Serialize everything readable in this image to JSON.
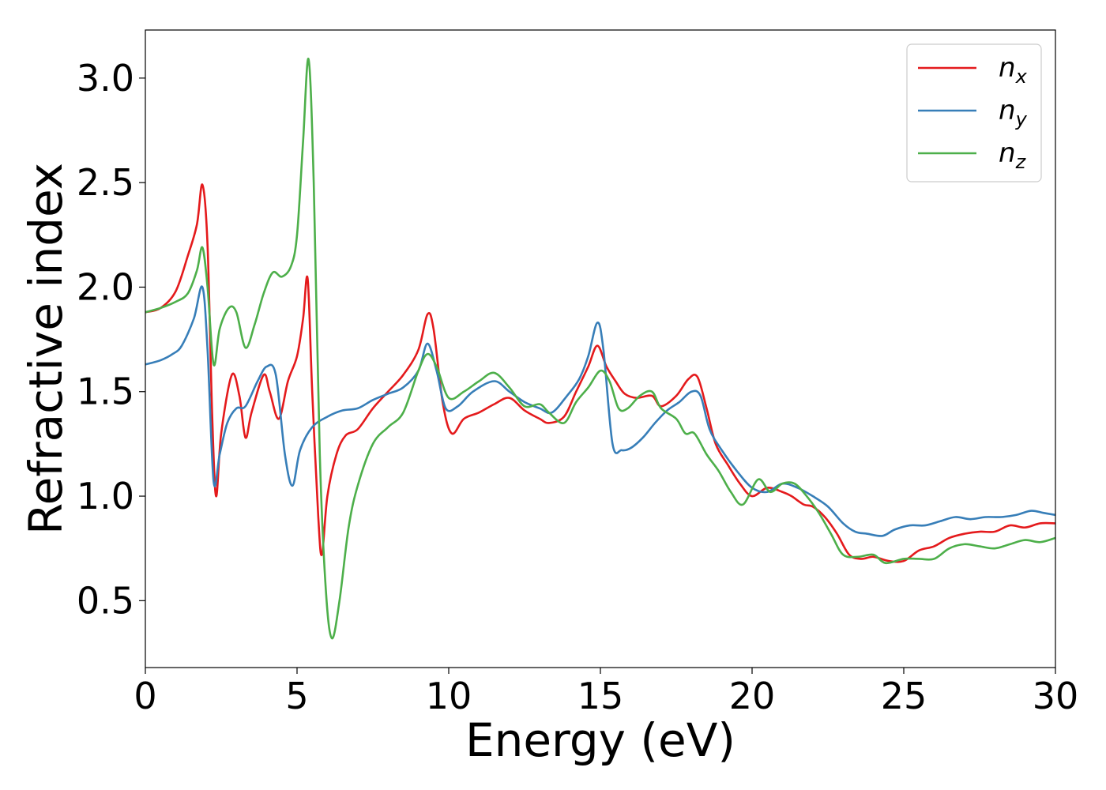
{
  "chart_data": {
    "type": "line",
    "xlabel": "Energy (eV)",
    "ylabel": "Refractive index",
    "xlim": [
      0,
      30
    ],
    "ylim": [
      0.18,
      3.23
    ],
    "xticks": [
      0,
      5,
      10,
      15,
      20,
      25,
      30
    ],
    "xtick_labels": [
      "0",
      "5",
      "10",
      "15",
      "20",
      "25",
      "30"
    ],
    "yticks": [
      0.5,
      1.0,
      1.5,
      2.0,
      2.5,
      3.0
    ],
    "ytick_labels": [
      "0.5",
      "1.0",
      "1.5",
      "2.0",
      "2.5",
      "3.0"
    ],
    "grid": false,
    "legend": "top-right",
    "series": [
      {
        "name": "n_x",
        "label_base": "n",
        "label_sub": "x",
        "color": "#e41a1c",
        "points": [
          [
            0,
            1.88
          ],
          [
            0.5,
            1.9
          ],
          [
            1.0,
            1.98
          ],
          [
            1.4,
            2.15
          ],
          [
            1.7,
            2.3
          ],
          [
            1.88,
            2.49
          ],
          [
            2.05,
            2.2
          ],
          [
            2.2,
            1.4
          ],
          [
            2.33,
            1.0
          ],
          [
            2.5,
            1.3
          ],
          [
            2.85,
            1.58
          ],
          [
            3.1,
            1.48
          ],
          [
            3.3,
            1.28
          ],
          [
            3.5,
            1.4
          ],
          [
            3.9,
            1.58
          ],
          [
            4.1,
            1.5
          ],
          [
            4.4,
            1.37
          ],
          [
            4.7,
            1.55
          ],
          [
            5.0,
            1.67
          ],
          [
            5.2,
            1.85
          ],
          [
            5.35,
            2.04
          ],
          [
            5.5,
            1.5
          ],
          [
            5.7,
            0.9
          ],
          [
            5.82,
            0.72
          ],
          [
            6.0,
            1.0
          ],
          [
            6.3,
            1.2
          ],
          [
            6.6,
            1.29
          ],
          [
            7.0,
            1.32
          ],
          [
            7.5,
            1.42
          ],
          [
            8.0,
            1.5
          ],
          [
            8.5,
            1.58
          ],
          [
            9.0,
            1.7
          ],
          [
            9.3,
            1.87
          ],
          [
            9.5,
            1.8
          ],
          [
            9.8,
            1.45
          ],
          [
            10.1,
            1.3
          ],
          [
            10.5,
            1.37
          ],
          [
            11,
            1.4
          ],
          [
            11.5,
            1.44
          ],
          [
            12,
            1.47
          ],
          [
            12.5,
            1.41
          ],
          [
            13,
            1.37
          ],
          [
            13.3,
            1.35
          ],
          [
            13.8,
            1.38
          ],
          [
            14.2,
            1.5
          ],
          [
            14.6,
            1.62
          ],
          [
            14.9,
            1.72
          ],
          [
            15.2,
            1.62
          ],
          [
            15.5,
            1.55
          ],
          [
            15.8,
            1.49
          ],
          [
            16.2,
            1.47
          ],
          [
            16.7,
            1.48
          ],
          [
            17.0,
            1.43
          ],
          [
            17.5,
            1.48
          ],
          [
            17.9,
            1.56
          ],
          [
            18.2,
            1.57
          ],
          [
            18.5,
            1.42
          ],
          [
            18.8,
            1.25
          ],
          [
            19.2,
            1.15
          ],
          [
            19.6,
            1.06
          ],
          [
            20.0,
            1.0
          ],
          [
            20.5,
            1.04
          ],
          [
            21.0,
            1.02
          ],
          [
            21.3,
            1.0
          ],
          [
            21.7,
            0.96
          ],
          [
            22.0,
            0.95
          ],
          [
            22.4,
            0.9
          ],
          [
            22.8,
            0.82
          ],
          [
            23.2,
            0.72
          ],
          [
            23.6,
            0.7
          ],
          [
            24.0,
            0.71
          ],
          [
            24.5,
            0.69
          ],
          [
            25.0,
            0.69
          ],
          [
            25.5,
            0.74
          ],
          [
            26.0,
            0.76
          ],
          [
            26.5,
            0.8
          ],
          [
            27.0,
            0.82
          ],
          [
            27.5,
            0.83
          ],
          [
            28.0,
            0.83
          ],
          [
            28.5,
            0.86
          ],
          [
            29.0,
            0.85
          ],
          [
            29.5,
            0.87
          ],
          [
            30,
            0.87
          ]
        ]
      },
      {
        "name": "n_y",
        "label_base": "n",
        "label_sub": "y",
        "color": "#377eb8",
        "points": [
          [
            0,
            1.63
          ],
          [
            0.5,
            1.65
          ],
          [
            0.9,
            1.68
          ],
          [
            1.2,
            1.72
          ],
          [
            1.6,
            1.85
          ],
          [
            1.88,
            2.0
          ],
          [
            2.05,
            1.7
          ],
          [
            2.25,
            1.07
          ],
          [
            2.45,
            1.2
          ],
          [
            2.7,
            1.35
          ],
          [
            3.0,
            1.42
          ],
          [
            3.3,
            1.43
          ],
          [
            3.7,
            1.55
          ],
          [
            4.0,
            1.62
          ],
          [
            4.3,
            1.58
          ],
          [
            4.6,
            1.2
          ],
          [
            4.85,
            1.05
          ],
          [
            5.1,
            1.22
          ],
          [
            5.5,
            1.33
          ],
          [
            6.0,
            1.38
          ],
          [
            6.5,
            1.41
          ],
          [
            7.0,
            1.42
          ],
          [
            7.5,
            1.46
          ],
          [
            8.0,
            1.49
          ],
          [
            8.5,
            1.52
          ],
          [
            9.0,
            1.6
          ],
          [
            9.3,
            1.73
          ],
          [
            9.6,
            1.6
          ],
          [
            9.9,
            1.42
          ],
          [
            10.3,
            1.43
          ],
          [
            10.8,
            1.5
          ],
          [
            11.5,
            1.55
          ],
          [
            12.0,
            1.5
          ],
          [
            12.5,
            1.45
          ],
          [
            13.0,
            1.42
          ],
          [
            13.4,
            1.4
          ],
          [
            13.9,
            1.48
          ],
          [
            14.3,
            1.56
          ],
          [
            14.6,
            1.67
          ],
          [
            14.9,
            1.83
          ],
          [
            15.1,
            1.7
          ],
          [
            15.4,
            1.25
          ],
          [
            15.7,
            1.22
          ],
          [
            16.0,
            1.23
          ],
          [
            16.4,
            1.28
          ],
          [
            16.8,
            1.35
          ],
          [
            17.2,
            1.41
          ],
          [
            17.6,
            1.45
          ],
          [
            18.0,
            1.5
          ],
          [
            18.3,
            1.48
          ],
          [
            18.6,
            1.32
          ],
          [
            19.0,
            1.22
          ],
          [
            19.5,
            1.12
          ],
          [
            20.0,
            1.04
          ],
          [
            20.5,
            1.02
          ],
          [
            21.0,
            1.06
          ],
          [
            21.5,
            1.04
          ],
          [
            22.0,
            1.0
          ],
          [
            22.5,
            0.95
          ],
          [
            23.0,
            0.87
          ],
          [
            23.4,
            0.83
          ],
          [
            23.8,
            0.82
          ],
          [
            24.3,
            0.81
          ],
          [
            24.7,
            0.84
          ],
          [
            25.2,
            0.86
          ],
          [
            25.7,
            0.86
          ],
          [
            26.2,
            0.88
          ],
          [
            26.7,
            0.9
          ],
          [
            27.2,
            0.89
          ],
          [
            27.7,
            0.9
          ],
          [
            28.2,
            0.9
          ],
          [
            28.7,
            0.91
          ],
          [
            29.2,
            0.93
          ],
          [
            29.6,
            0.92
          ],
          [
            30,
            0.91
          ]
        ]
      },
      {
        "name": "n_z",
        "label_base": "n",
        "label_sub": "z",
        "color": "#4daf4a",
        "points": [
          [
            0,
            1.88
          ],
          [
            0.5,
            1.9
          ],
          [
            1.0,
            1.93
          ],
          [
            1.4,
            1.97
          ],
          [
            1.7,
            2.08
          ],
          [
            1.88,
            2.19
          ],
          [
            2.05,
            2.0
          ],
          [
            2.25,
            1.63
          ],
          [
            2.45,
            1.8
          ],
          [
            2.75,
            1.9
          ],
          [
            3.0,
            1.88
          ],
          [
            3.3,
            1.71
          ],
          [
            3.6,
            1.82
          ],
          [
            3.9,
            1.97
          ],
          [
            4.2,
            2.07
          ],
          [
            4.5,
            2.05
          ],
          [
            4.8,
            2.1
          ],
          [
            5.0,
            2.25
          ],
          [
            5.2,
            2.7
          ],
          [
            5.38,
            3.09
          ],
          [
            5.55,
            2.5
          ],
          [
            5.75,
            1.2
          ],
          [
            5.95,
            0.55
          ],
          [
            6.15,
            0.32
          ],
          [
            6.4,
            0.5
          ],
          [
            6.7,
            0.85
          ],
          [
            7.0,
            1.05
          ],
          [
            7.5,
            1.25
          ],
          [
            8.0,
            1.33
          ],
          [
            8.5,
            1.4
          ],
          [
            9.0,
            1.6
          ],
          [
            9.3,
            1.68
          ],
          [
            9.6,
            1.62
          ],
          [
            10.0,
            1.47
          ],
          [
            10.5,
            1.5
          ],
          [
            11.0,
            1.55
          ],
          [
            11.5,
            1.59
          ],
          [
            12.0,
            1.52
          ],
          [
            12.5,
            1.43
          ],
          [
            13.0,
            1.44
          ],
          [
            13.3,
            1.4
          ],
          [
            13.8,
            1.35
          ],
          [
            14.2,
            1.45
          ],
          [
            14.6,
            1.52
          ],
          [
            15.0,
            1.6
          ],
          [
            15.3,
            1.55
          ],
          [
            15.6,
            1.42
          ],
          [
            15.9,
            1.42
          ],
          [
            16.3,
            1.48
          ],
          [
            16.7,
            1.5
          ],
          [
            17.0,
            1.42
          ],
          [
            17.5,
            1.37
          ],
          [
            17.8,
            1.3
          ],
          [
            18.1,
            1.3
          ],
          [
            18.5,
            1.2
          ],
          [
            18.9,
            1.12
          ],
          [
            19.3,
            1.02
          ],
          [
            19.7,
            0.96
          ],
          [
            20.2,
            1.08
          ],
          [
            20.6,
            1.02
          ],
          [
            21.0,
            1.06
          ],
          [
            21.4,
            1.06
          ],
          [
            21.8,
            1.0
          ],
          [
            22.2,
            0.92
          ],
          [
            22.6,
            0.82
          ],
          [
            23.0,
            0.72
          ],
          [
            23.5,
            0.71
          ],
          [
            24.0,
            0.72
          ],
          [
            24.4,
            0.68
          ],
          [
            25.0,
            0.7
          ],
          [
            25.5,
            0.7
          ],
          [
            26.0,
            0.7
          ],
          [
            26.5,
            0.75
          ],
          [
            27.0,
            0.77
          ],
          [
            27.5,
            0.76
          ],
          [
            28.0,
            0.75
          ],
          [
            28.5,
            0.77
          ],
          [
            29.0,
            0.79
          ],
          [
            29.5,
            0.78
          ],
          [
            30,
            0.8
          ]
        ]
      }
    ]
  }
}
